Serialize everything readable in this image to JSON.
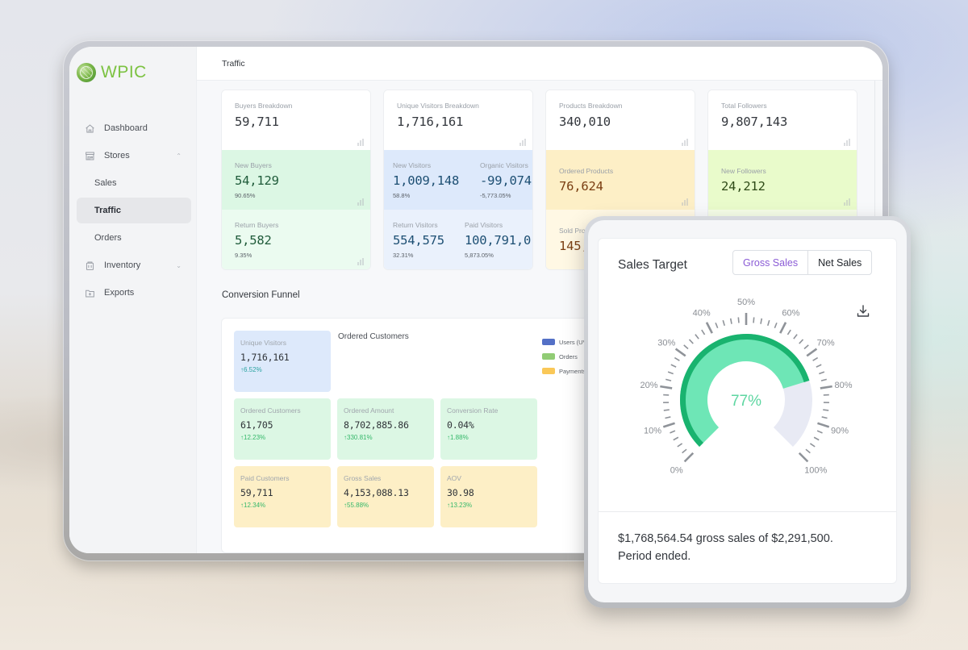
{
  "app": {
    "brand": "WPIC",
    "page_title": "Traffic"
  },
  "sidebar": {
    "items": [
      {
        "label": "Dashboard",
        "icon": "home-icon",
        "level": 0
      },
      {
        "label": "Stores",
        "icon": "store-icon",
        "level": 0,
        "expanded": true
      },
      {
        "label": "Sales",
        "level": 1
      },
      {
        "label": "Traffic",
        "level": 1,
        "active": true
      },
      {
        "label": "Orders",
        "level": 1
      },
      {
        "label": "Inventory",
        "icon": "inventory-icon",
        "level": 0,
        "expanded": false
      },
      {
        "label": "Exports",
        "icon": "export-icon",
        "level": 0
      }
    ]
  },
  "breakdowns": {
    "buyers": {
      "title": "Buyers Breakdown",
      "total": "59,711",
      "new": {
        "label": "New Buyers",
        "value": "54,129",
        "pct": "90.65%"
      },
      "return": {
        "label": "Return Buyers",
        "value": "5,582",
        "pct": "9.35%"
      }
    },
    "visitors": {
      "title": "Unique Visitors Breakdown",
      "total": "1,716,161",
      "new": {
        "label": "New Visitors",
        "value": "1,009,148",
        "pct": "58.8%"
      },
      "organic": {
        "label": "Organic Visitors",
        "value": "-99,074",
        "pct": "-5,773.05%"
      },
      "return": {
        "label": "Return Visitors",
        "value": "554,575",
        "pct": "32.31%"
      },
      "paid": {
        "label": "Paid Visitors",
        "value": "100,791,0",
        "pct": "5,873.05%"
      }
    },
    "products": {
      "title": "Products Breakdown",
      "total": "340,010",
      "ordered": {
        "label": "Ordered Products",
        "value": "76,624"
      },
      "sold": {
        "label": "Sold Pro",
        "value": "145,"
      }
    },
    "followers": {
      "title": "Total Followers",
      "total": "9,807,143",
      "new": {
        "label": "New Followers",
        "value": "24,212"
      }
    }
  },
  "funnel": {
    "section_title": "Conversion Funnel",
    "chart_title": "Ordered Customers",
    "legend": [
      {
        "label": "Users (UV)",
        "color": "#5470c6"
      },
      {
        "label": "Orders",
        "color": "#91cc75"
      },
      {
        "label": "Payments",
        "color": "#fac858"
      }
    ],
    "tiles": [
      {
        "label": "Unique Visitors",
        "value": "1,716,161",
        "change": "↑6.52%"
      },
      {
        "label": "Ordered Customers",
        "value": "61,705",
        "change": "↑12.23%"
      },
      {
        "label": "Ordered Amount",
        "value": "8,702,885.86",
        "change": "↑330.81%"
      },
      {
        "label": "Conversion Rate",
        "value": "0.04%",
        "change": "↑1.88%"
      },
      {
        "label": "Paid Customers",
        "value": "59,711",
        "change": "↑12.34%"
      },
      {
        "label": "Gross Sales",
        "value": "4,153,088.13",
        "change": "↑55.88%"
      },
      {
        "label": "AOV",
        "value": "30.98",
        "change": "↑13.23%"
      }
    ]
  },
  "sales_target": {
    "title": "Sales Target",
    "toggle": {
      "options": [
        "Gross Sales",
        "Net Sales"
      ],
      "selected": "Gross Sales"
    },
    "download_icon": "download-icon",
    "gauge": {
      "value_label": "77%",
      "value": 77,
      "tick_labels": [
        "0%",
        "10%",
        "20%",
        "30%",
        "40%",
        "50%",
        "60%",
        "70%",
        "80%",
        "90%",
        "100%"
      ],
      "fill_color": "#6ee6b6",
      "edge_color": "#19b36f",
      "track_color": "#e8eaf4"
    },
    "footer_line1": "$1,768,564.54 gross sales of $2,291,500.",
    "footer_line2": "Period ended."
  }
}
